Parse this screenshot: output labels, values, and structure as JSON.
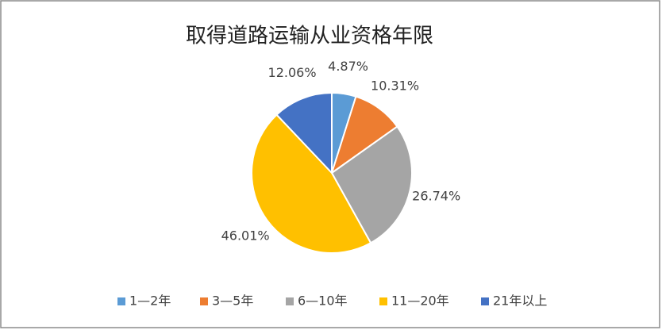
{
  "chart_data": {
    "type": "pie",
    "title": "取得道路运输从业资格年限",
    "categories": [
      "1—2年",
      "3—5年",
      "6—10年",
      "11—20年",
      "21年以上"
    ],
    "values": [
      4.87,
      10.31,
      26.74,
      46.01,
      12.06
    ],
    "value_labels": [
      "4.87%",
      "10.31%",
      "26.74%",
      "46.01%",
      "12.06%"
    ],
    "colors": [
      "#5b9bd5",
      "#ed7d31",
      "#a5a5a5",
      "#ffc000",
      "#4472c4"
    ],
    "legend": "bottom"
  }
}
